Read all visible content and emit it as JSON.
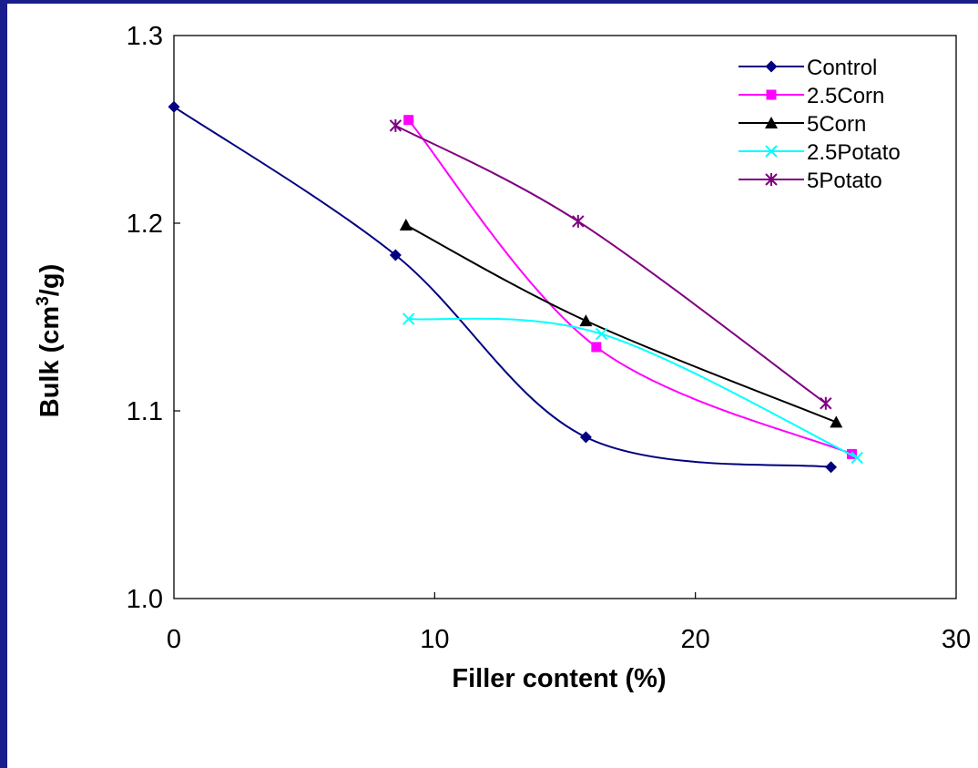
{
  "chart_data": {
    "type": "line",
    "title": "",
    "xlabel": "Filler content (%)",
    "ylabel_main": "Bulk (cm",
    "ylabel_sup": "3",
    "ylabel_end": "/g)",
    "xlim": [
      0,
      30
    ],
    "ylim": [
      1.0,
      1.3
    ],
    "x_ticks": [
      0,
      10,
      20,
      30
    ],
    "x_tick_labels": [
      "0",
      "10",
      "20",
      "30"
    ],
    "y_ticks": [
      1.0,
      1.1,
      1.2,
      1.3
    ],
    "y_tick_labels": [
      "1.0",
      "1.1",
      "1.2",
      "1.3"
    ],
    "grid": false,
    "legend_position": "top-right",
    "series": [
      {
        "name": "Control",
        "color": "#000080",
        "marker": "diamond",
        "x": [
          0,
          8.5,
          15.8,
          25.2
        ],
        "y": [
          1.262,
          1.183,
          1.086,
          1.07
        ]
      },
      {
        "name": "2.5Corn",
        "color": "#ff00ff",
        "marker": "square",
        "x": [
          9.0,
          16.2,
          26.0
        ],
        "y": [
          1.255,
          1.134,
          1.077
        ]
      },
      {
        "name": "5Corn",
        "color": "#000000",
        "marker": "triangle",
        "x": [
          8.9,
          15.8,
          25.4
        ],
        "y": [
          1.199,
          1.148,
          1.094
        ]
      },
      {
        "name": "2.5Potato",
        "color": "#00ffff",
        "marker": "x",
        "x": [
          9.0,
          16.4,
          26.2
        ],
        "y": [
          1.149,
          1.141,
          1.075
        ]
      },
      {
        "name": "5Potato",
        "color": "#800080",
        "marker": "star",
        "x": [
          8.5,
          15.5,
          25.0
        ],
        "y": [
          1.252,
          1.201,
          1.104
        ]
      }
    ]
  }
}
